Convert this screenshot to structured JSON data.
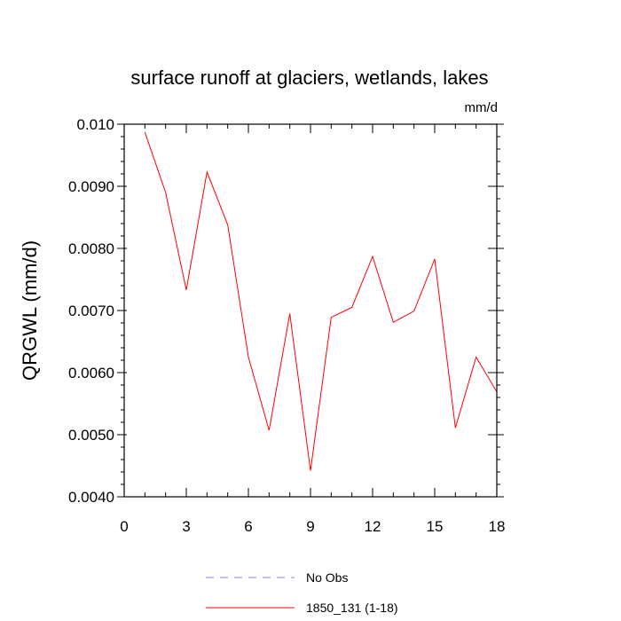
{
  "chart_data": {
    "type": "line",
    "title": "surface runoff at glaciers, wetlands, lakes",
    "units_label": "mm/d",
    "ylabel": "QRGWL  (mm/d)",
    "xlabel": "",
    "xlim": [
      0,
      18
    ],
    "ylim": [
      0.004,
      0.01
    ],
    "x_ticks": [
      0,
      3,
      6,
      9,
      12,
      15,
      18
    ],
    "x_tick_labels": [
      "0",
      "3",
      "6",
      "9",
      "12",
      "15",
      "18"
    ],
    "y_ticks": [
      0.004,
      0.005,
      0.006,
      0.007,
      0.008,
      0.009,
      0.01
    ],
    "y_tick_labels": [
      "0.0040",
      "0.0050",
      "0.0060",
      "0.0070",
      "0.0080",
      "0.0090",
      "0.010"
    ],
    "grid": false,
    "legend_position": "bottom-center",
    "series": [
      {
        "name": "1850_131 (1-18)",
        "color": "#ff0000",
        "dash": "solid",
        "x": [
          1,
          2,
          3,
          4,
          5,
          6,
          7,
          8,
          9,
          10,
          11,
          12,
          13,
          14,
          15,
          16,
          17,
          18
        ],
        "values": [
          0.00987,
          0.0089,
          0.00733,
          0.00923,
          0.00838,
          0.00625,
          0.00507,
          0.00695,
          0.00442,
          0.00689,
          0.00705,
          0.00787,
          0.00681,
          0.00699,
          0.00783,
          0.00511,
          0.00625,
          0.00569
        ]
      }
    ],
    "legend": [
      {
        "label": "No Obs",
        "color": "#8080ff",
        "dash": "dashed"
      },
      {
        "label": "1850_131 (1-18)",
        "color": "#ff0000",
        "dash": "solid"
      }
    ]
  }
}
